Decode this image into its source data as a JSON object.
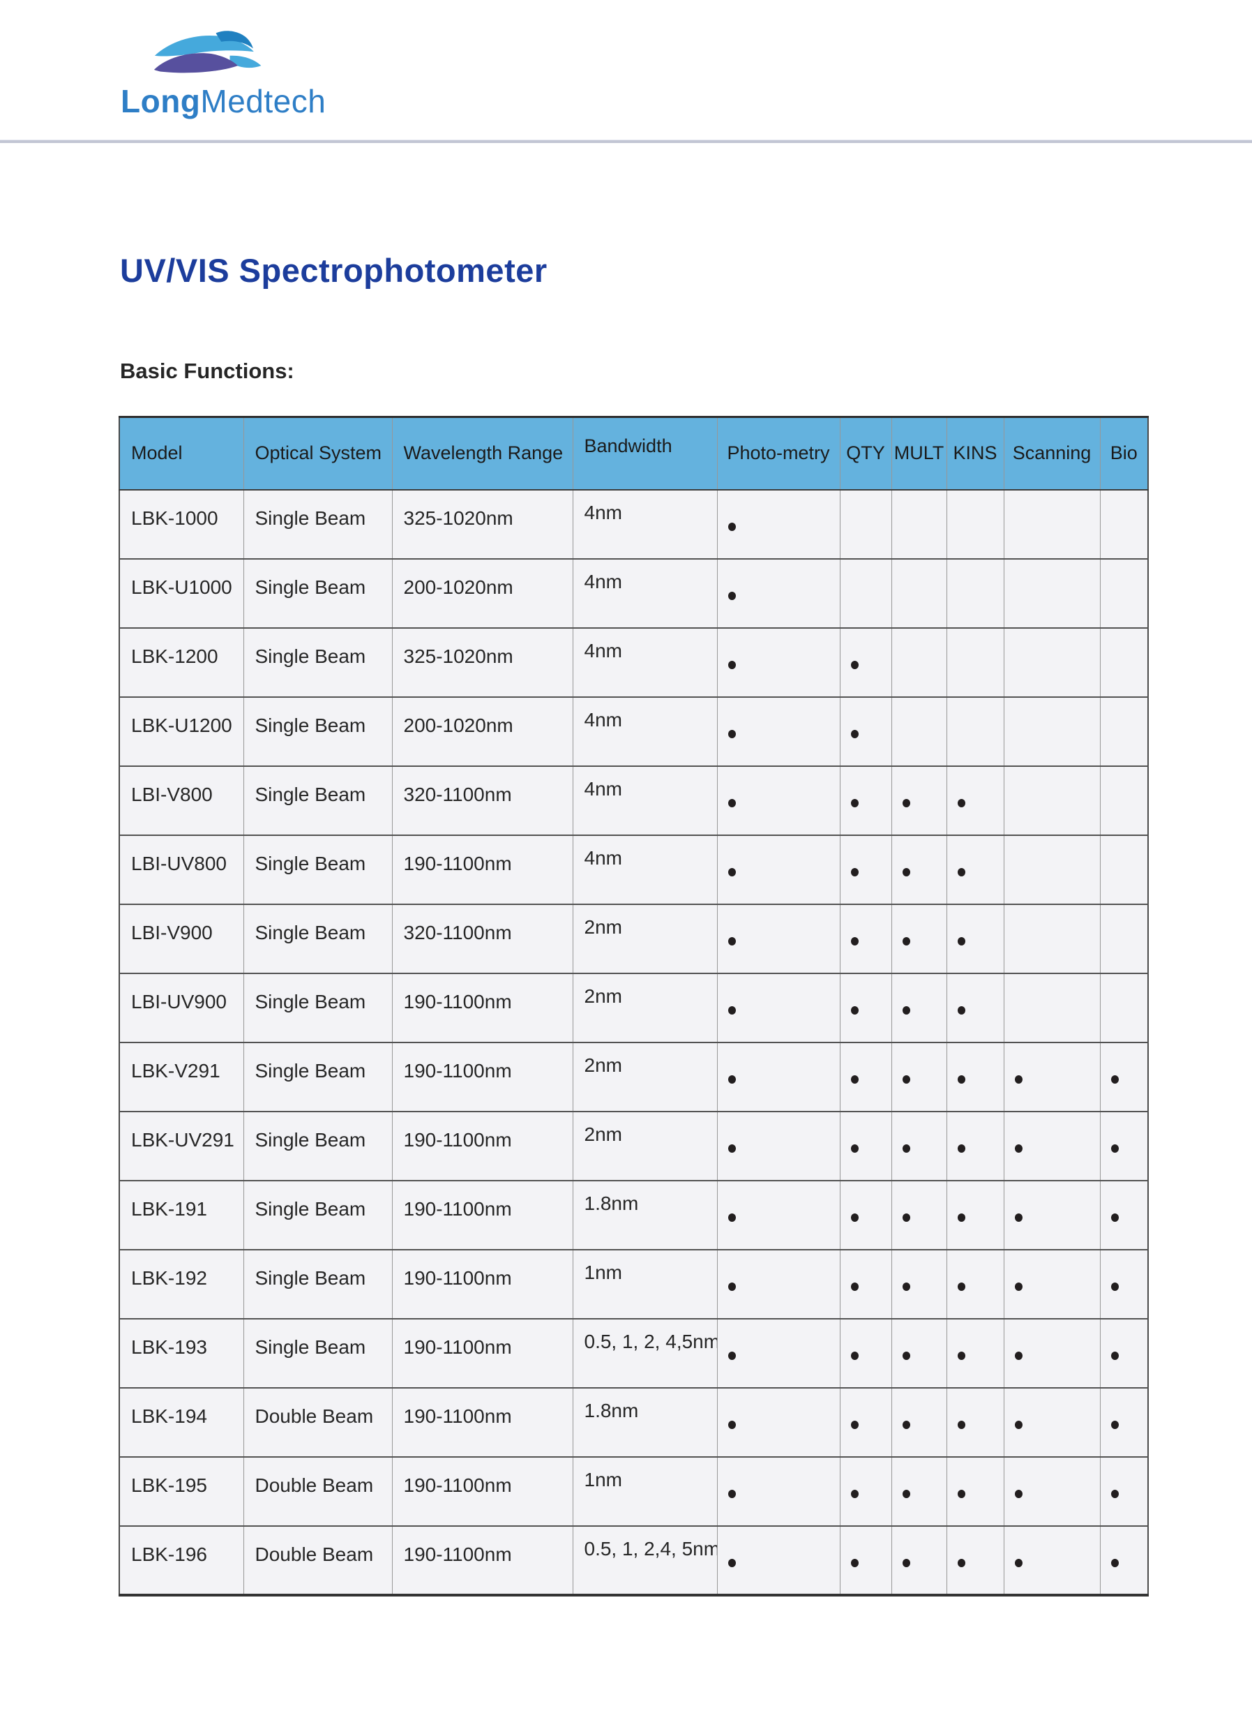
{
  "brand": {
    "name_bold": "Long",
    "name_light": "Medtech",
    "text_color": "#2e7ec6",
    "mark_colors": {
      "light_blue": "#45a9dc",
      "dark_blue": "#2080c0",
      "purple": "#57509e"
    }
  },
  "divider_color": "#c2c6d4",
  "title": {
    "text": "UV/VIS Spectrophotometer",
    "color": "#1c3d9c"
  },
  "section_heading": "Basic Functions:",
  "table": {
    "header_bg": "#64b2de",
    "columns": [
      "Model",
      "Optical System",
      "Wavelength Range",
      "Bandwidth",
      "Photo-metry",
      "QTY",
      "MULT",
      "KINS",
      "Scanning",
      "Bio"
    ],
    "rows": [
      {
        "model": "LBK-1000",
        "optical_system": "Single Beam",
        "wavelength_range": "325-1020nm",
        "bandwidth": "4nm",
        "features": [
          true,
          false,
          false,
          false,
          false,
          false
        ]
      },
      {
        "model": "LBK-U1000",
        "optical_system": "Single Beam",
        "wavelength_range": "200-1020nm",
        "bandwidth": "4nm",
        "features": [
          true,
          false,
          false,
          false,
          false,
          false
        ]
      },
      {
        "model": "LBK-1200",
        "optical_system": "Single Beam",
        "wavelength_range": "325-1020nm",
        "bandwidth": "4nm",
        "features": [
          true,
          true,
          false,
          false,
          false,
          false
        ]
      },
      {
        "model": "LBK-U1200",
        "optical_system": "Single Beam",
        "wavelength_range": "200-1020nm",
        "bandwidth": "4nm",
        "features": [
          true,
          true,
          false,
          false,
          false,
          false
        ]
      },
      {
        "model": "LBI-V800",
        "optical_system": "Single Beam",
        "wavelength_range": "320-1100nm",
        "bandwidth": "4nm",
        "features": [
          true,
          true,
          true,
          true,
          false,
          false
        ]
      },
      {
        "model": "LBI-UV800",
        "optical_system": "Single Beam",
        "wavelength_range": "190-1100nm",
        "bandwidth": "4nm",
        "features": [
          true,
          true,
          true,
          true,
          false,
          false
        ]
      },
      {
        "model": "LBI-V900",
        "optical_system": "Single Beam",
        "wavelength_range": "320-1100nm",
        "bandwidth": "2nm",
        "features": [
          true,
          true,
          true,
          true,
          false,
          false
        ]
      },
      {
        "model": "LBI-UV900",
        "optical_system": "Single Beam",
        "wavelength_range": "190-1100nm",
        "bandwidth": "2nm",
        "features": [
          true,
          true,
          true,
          true,
          false,
          false
        ]
      },
      {
        "model": "LBK-V291",
        "optical_system": "Single Beam",
        "wavelength_range": "190-1100nm",
        "bandwidth": "2nm",
        "features": [
          true,
          true,
          true,
          true,
          true,
          true
        ]
      },
      {
        "model": "LBK-UV291",
        "optical_system": "Single Beam",
        "wavelength_range": "190-1100nm",
        "bandwidth": "2nm",
        "features": [
          true,
          true,
          true,
          true,
          true,
          true
        ]
      },
      {
        "model": "LBK-191",
        "optical_system": "Single Beam",
        "wavelength_range": "190-1100nm",
        "bandwidth": "1.8nm",
        "features": [
          true,
          true,
          true,
          true,
          true,
          true
        ]
      },
      {
        "model": "LBK-192",
        "optical_system": "Single Beam",
        "wavelength_range": "190-1100nm",
        "bandwidth": "1nm",
        "features": [
          true,
          true,
          true,
          true,
          true,
          true
        ]
      },
      {
        "model": "LBK-193",
        "optical_system": "Single Beam",
        "wavelength_range": "190-1100nm",
        "bandwidth": "0.5, 1, 2, 4,5nm",
        "features": [
          true,
          true,
          true,
          true,
          true,
          true
        ]
      },
      {
        "model": "LBK-194",
        "optical_system": "Double Beam",
        "wavelength_range": "190-1100nm",
        "bandwidth": "1.8nm",
        "features": [
          true,
          true,
          true,
          true,
          true,
          true
        ]
      },
      {
        "model": "LBK-195",
        "optical_system": "Double Beam",
        "wavelength_range": "190-1100nm",
        "bandwidth": "1nm",
        "features": [
          true,
          true,
          true,
          true,
          true,
          true
        ]
      },
      {
        "model": "LBK-196",
        "optical_system": "Double Beam",
        "wavelength_range": "190-1100nm",
        "bandwidth": "0.5, 1, 2,4, 5nm",
        "features": [
          true,
          true,
          true,
          true,
          true,
          true
        ]
      }
    ]
  }
}
